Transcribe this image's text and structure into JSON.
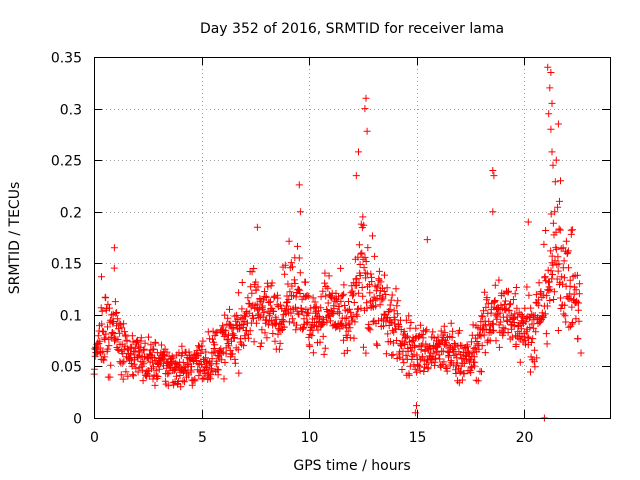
{
  "chart_data": {
    "type": "scatter",
    "title": "Day 352 of 2016, SRMTID for receiver lama",
    "xlabel": "GPS time / hours",
    "ylabel": "SRMTID / TECUs",
    "xlim": [
      0,
      24
    ],
    "ylim": [
      0,
      0.35
    ],
    "xticks": [
      0,
      5,
      10,
      15,
      20
    ],
    "xtick_labels": [
      "0",
      "5",
      "10",
      "15",
      "20"
    ],
    "yticks": [
      0,
      0.05,
      0.1,
      0.15,
      0.2,
      0.25,
      0.3,
      0.35
    ],
    "ytick_labels": [
      "0",
      "0.05",
      "0.1",
      "0.15",
      "0.2",
      "0.25",
      "0.3",
      "0.35"
    ],
    "grid": true,
    "marker": "+",
    "color": "#ff0000",
    "series": [
      {
        "name": "SRMTID",
        "profile": [
          {
            "x": 0.0,
            "y": 0.055,
            "spread": 0.012
          },
          {
            "x": 0.4,
            "y": 0.08,
            "spread": 0.025
          },
          {
            "x": 0.9,
            "y": 0.09,
            "spread": 0.035
          },
          {
            "x": 1.5,
            "y": 0.065,
            "spread": 0.02
          },
          {
            "x": 2.5,
            "y": 0.055,
            "spread": 0.018
          },
          {
            "x": 3.5,
            "y": 0.05,
            "spread": 0.018
          },
          {
            "x": 4.5,
            "y": 0.05,
            "spread": 0.017
          },
          {
            "x": 5.5,
            "y": 0.06,
            "spread": 0.02
          },
          {
            "x": 6.5,
            "y": 0.08,
            "spread": 0.025
          },
          {
            "x": 7.5,
            "y": 0.11,
            "spread": 0.03
          },
          {
            "x": 8.5,
            "y": 0.1,
            "spread": 0.025
          },
          {
            "x": 9.5,
            "y": 0.13,
            "spread": 0.035
          },
          {
            "x": 10.0,
            "y": 0.09,
            "spread": 0.025
          },
          {
            "x": 11.0,
            "y": 0.11,
            "spread": 0.03
          },
          {
            "x": 11.8,
            "y": 0.085,
            "spread": 0.025
          },
          {
            "x": 12.5,
            "y": 0.14,
            "spread": 0.05
          },
          {
            "x": 13.3,
            "y": 0.11,
            "spread": 0.035
          },
          {
            "x": 14.5,
            "y": 0.07,
            "spread": 0.025
          },
          {
            "x": 15.3,
            "y": 0.065,
            "spread": 0.02
          },
          {
            "x": 16.5,
            "y": 0.065,
            "spread": 0.022
          },
          {
            "x": 17.5,
            "y": 0.055,
            "spread": 0.02
          },
          {
            "x": 18.5,
            "y": 0.1,
            "spread": 0.03
          },
          {
            "x": 19.5,
            "y": 0.1,
            "spread": 0.03
          },
          {
            "x": 20.5,
            "y": 0.085,
            "spread": 0.03
          },
          {
            "x": 21.5,
            "y": 0.16,
            "spread": 0.05
          },
          {
            "x": 22.5,
            "y": 0.11,
            "spread": 0.03
          }
        ],
        "x_range": [
          0,
          22.6
        ],
        "n_points": 1400,
        "peaks": [
          {
            "x": 0.95,
            "y": 0.165
          },
          {
            "x": 0.35,
            "y": 0.137
          },
          {
            "x": 7.6,
            "y": 0.185
          },
          {
            "x": 9.55,
            "y": 0.226
          },
          {
            "x": 9.6,
            "y": 0.2
          },
          {
            "x": 12.3,
            "y": 0.258
          },
          {
            "x": 12.65,
            "y": 0.31
          },
          {
            "x": 12.6,
            "y": 0.3
          },
          {
            "x": 12.7,
            "y": 0.278
          },
          {
            "x": 12.2,
            "y": 0.235
          },
          {
            "x": 12.5,
            "y": 0.195
          },
          {
            "x": 15.5,
            "y": 0.173
          },
          {
            "x": 18.55,
            "y": 0.24
          },
          {
            "x": 18.6,
            "y": 0.235
          },
          {
            "x": 18.55,
            "y": 0.2
          },
          {
            "x": 20.2,
            "y": 0.19
          },
          {
            "x": 21.1,
            "y": 0.34
          },
          {
            "x": 21.25,
            "y": 0.335
          },
          {
            "x": 21.2,
            "y": 0.32
          },
          {
            "x": 21.3,
            "y": 0.305
          },
          {
            "x": 21.15,
            "y": 0.295
          },
          {
            "x": 21.25,
            "y": 0.28
          },
          {
            "x": 21.6,
            "y": 0.285
          },
          {
            "x": 21.3,
            "y": 0.258
          },
          {
            "x": 21.35,
            "y": 0.245
          },
          {
            "x": 21.5,
            "y": 0.25
          },
          {
            "x": 21.7,
            "y": 0.23
          },
          {
            "x": 21.65,
            "y": 0.21
          },
          {
            "x": 22.2,
            "y": 0.178
          },
          {
            "x": 20.95,
            "y": 0.0
          },
          {
            "x": 14.95,
            "y": 0.005
          },
          {
            "x": 15.0,
            "y": 0.012
          },
          {
            "x": 22.65,
            "y": 0.063
          }
        ]
      }
    ]
  }
}
